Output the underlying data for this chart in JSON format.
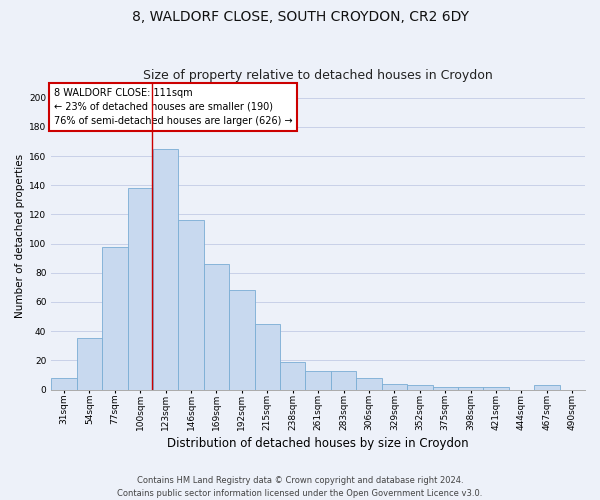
{
  "title": "8, WALDORF CLOSE, SOUTH CROYDON, CR2 6DY",
  "subtitle": "Size of property relative to detached houses in Croydon",
  "xlabel": "Distribution of detached houses by size in Croydon",
  "ylabel": "Number of detached properties",
  "categories": [
    "31sqm",
    "54sqm",
    "77sqm",
    "100sqm",
    "123sqm",
    "146sqm",
    "169sqm",
    "192sqm",
    "215sqm",
    "238sqm",
    "261sqm",
    "283sqm",
    "306sqm",
    "329sqm",
    "352sqm",
    "375sqm",
    "398sqm",
    "421sqm",
    "444sqm",
    "467sqm",
    "490sqm"
  ],
  "values": [
    8,
    35,
    98,
    138,
    165,
    116,
    86,
    68,
    45,
    19,
    13,
    13,
    8,
    4,
    3,
    2,
    2,
    2,
    0,
    3,
    0
  ],
  "bar_color": "#c8d9ef",
  "bar_edge_color": "#7aadd4",
  "annotation_box_text": "8 WALDORF CLOSE: 111sqm\n← 23% of detached houses are smaller (190)\n76% of semi-detached houses are larger (626) →",
  "annotation_box_color": "#ffffff",
  "annotation_box_edge_color": "#cc0000",
  "red_line_color": "#cc0000",
  "ylim": [
    0,
    210
  ],
  "yticks": [
    0,
    20,
    40,
    60,
    80,
    100,
    120,
    140,
    160,
    180,
    200
  ],
  "grid_color": "#c8d0e8",
  "bg_color": "#edf1f9",
  "footnote": "Contains HM Land Registry data © Crown copyright and database right 2024.\nContains public sector information licensed under the Open Government Licence v3.0.",
  "title_fontsize": 10,
  "subtitle_fontsize": 9,
  "xlabel_fontsize": 8.5,
  "ylabel_fontsize": 7.5,
  "tick_fontsize": 6.5,
  "annot_fontsize": 7,
  "footnote_fontsize": 6
}
